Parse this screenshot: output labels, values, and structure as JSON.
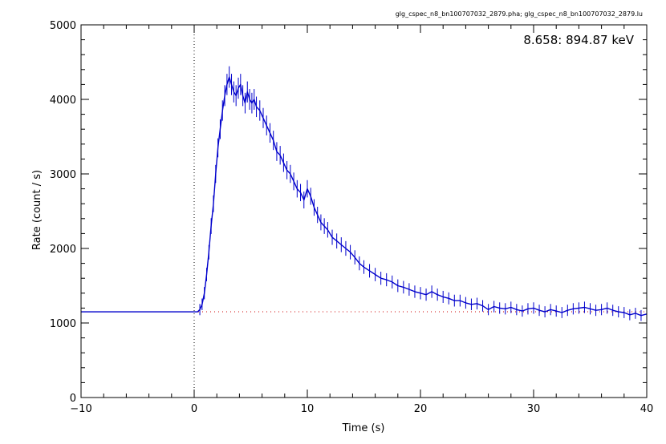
{
  "chart_data": {
    "type": "line",
    "file_label": "glg_cspec_n8_bn100707032_2879.pha; glg_cspec_n8_bn100707032_2879.lu",
    "energy_label": "8.658: 894.87 keV",
    "xlabel": "Time (s)",
    "ylabel": "Rate (count / s)",
    "xlim": [
      -10,
      40
    ],
    "ylim": [
      0,
      5000
    ],
    "x_ticks": [
      -10,
      0,
      10,
      20,
      30,
      40
    ],
    "x_tick_labels": [
      "−10",
      "0",
      "10",
      "20",
      "30",
      "40"
    ],
    "y_ticks": [
      0,
      1000,
      2000,
      3000,
      4000,
      5000
    ],
    "y_tick_labels": [
      "0",
      "1000",
      "2000",
      "3000",
      "4000",
      "5000"
    ],
    "trigger_time": 0,
    "background_level": 1150,
    "background_range": [
      0,
      40
    ],
    "series": [
      {
        "color": "#0000cc",
        "points": [
          [
            -10,
            1150
          ],
          [
            0.3,
            1150
          ],
          [
            0.5,
            1180
          ],
          [
            0.7,
            1250
          ],
          [
            0.9,
            1400
          ],
          [
            1.1,
            1650
          ],
          [
            1.3,
            1950
          ],
          [
            1.5,
            2300
          ],
          [
            1.7,
            2600
          ],
          [
            1.9,
            3000
          ],
          [
            2.1,
            3350
          ],
          [
            2.3,
            3600
          ],
          [
            2.5,
            3850
          ],
          [
            2.7,
            4050
          ],
          [
            2.9,
            4200
          ],
          [
            3.1,
            4300
          ],
          [
            3.3,
            4200
          ],
          [
            3.5,
            4100
          ],
          [
            3.7,
            4050
          ],
          [
            3.9,
            4150
          ],
          [
            4.1,
            4200
          ],
          [
            4.3,
            4050
          ],
          [
            4.5,
            3950
          ],
          [
            4.7,
            4100
          ],
          [
            4.9,
            4000
          ],
          [
            5.1,
            3950
          ],
          [
            5.3,
            4000
          ],
          [
            5.5,
            3900
          ],
          [
            5.8,
            3850
          ],
          [
            6.1,
            3750
          ],
          [
            6.4,
            3650
          ],
          [
            6.7,
            3550
          ],
          [
            7.0,
            3450
          ],
          [
            7.3,
            3300
          ],
          [
            7.6,
            3250
          ],
          [
            7.9,
            3150
          ],
          [
            8.2,
            3050
          ],
          [
            8.5,
            3000
          ],
          [
            8.8,
            2900
          ],
          [
            9.1,
            2800
          ],
          [
            9.4,
            2750
          ],
          [
            9.7,
            2650
          ],
          [
            10.0,
            2800
          ],
          [
            10.3,
            2700
          ],
          [
            10.6,
            2550
          ],
          [
            10.9,
            2450
          ],
          [
            11.2,
            2350
          ],
          [
            11.5,
            2300
          ],
          [
            11.8,
            2250
          ],
          [
            12.2,
            2150
          ],
          [
            12.6,
            2100
          ],
          [
            13.0,
            2050
          ],
          [
            13.4,
            2000
          ],
          [
            13.8,
            1950
          ],
          [
            14.2,
            1880
          ],
          [
            14.6,
            1800
          ],
          [
            15.0,
            1750
          ],
          [
            15.5,
            1700
          ],
          [
            16.0,
            1650
          ],
          [
            16.5,
            1600
          ],
          [
            17.0,
            1580
          ],
          [
            17.5,
            1550
          ],
          [
            18.0,
            1500
          ],
          [
            18.5,
            1480
          ],
          [
            19.0,
            1450
          ],
          [
            19.5,
            1420
          ],
          [
            20.0,
            1400
          ],
          [
            20.5,
            1380
          ],
          [
            21.0,
            1420
          ],
          [
            21.5,
            1380
          ],
          [
            22.0,
            1350
          ],
          [
            22.5,
            1330
          ],
          [
            23.0,
            1300
          ],
          [
            23.5,
            1300
          ],
          [
            24.0,
            1270
          ],
          [
            24.5,
            1250
          ],
          [
            25.0,
            1260
          ],
          [
            25.5,
            1230
          ],
          [
            26.0,
            1180
          ],
          [
            26.5,
            1220
          ],
          [
            27.0,
            1200
          ],
          [
            27.5,
            1190
          ],
          [
            28.0,
            1210
          ],
          [
            28.5,
            1180
          ],
          [
            29.0,
            1160
          ],
          [
            29.5,
            1190
          ],
          [
            30.0,
            1200
          ],
          [
            30.5,
            1170
          ],
          [
            31.0,
            1150
          ],
          [
            31.5,
            1180
          ],
          [
            32.0,
            1160
          ],
          [
            32.5,
            1140
          ],
          [
            33.0,
            1170
          ],
          [
            33.5,
            1190
          ],
          [
            34.0,
            1200
          ],
          [
            34.5,
            1210
          ],
          [
            35.0,
            1190
          ],
          [
            35.5,
            1170
          ],
          [
            36.0,
            1180
          ],
          [
            36.5,
            1200
          ],
          [
            37.0,
            1170
          ],
          [
            37.5,
            1150
          ],
          [
            38.0,
            1140
          ],
          [
            38.5,
            1110
          ],
          [
            39.0,
            1130
          ],
          [
            39.5,
            1100
          ],
          [
            40.0,
            1120
          ]
        ]
      }
    ],
    "background_color": "#cc0000",
    "grid": false
  }
}
